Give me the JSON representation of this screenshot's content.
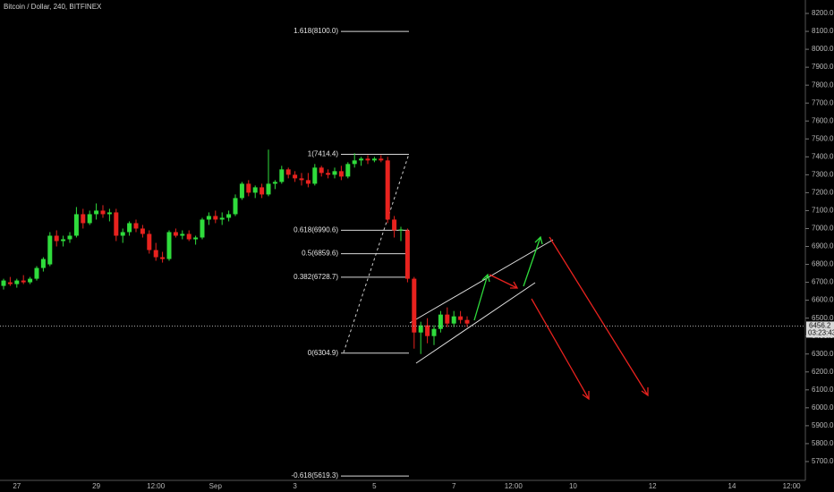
{
  "chart_data": {
    "type": "candlestick",
    "title": "Bitcoin / Dollar, 240, BITFINEX",
    "up_color": "#2fdc3c",
    "down_color": "#e8221e",
    "ylim": [
      5595,
      8275
    ],
    "yticks": [
      {
        "value": 5700,
        "label": "5700.0"
      },
      {
        "value": 5800,
        "label": "5800.0"
      },
      {
        "value": 5900,
        "label": "5900.0"
      },
      {
        "value": 6000,
        "label": "6000.0"
      },
      {
        "value": 6100,
        "label": "6100.0"
      },
      {
        "value": 6200,
        "label": "6200.0"
      },
      {
        "value": 6300,
        "label": "6300.0"
      },
      {
        "value": 6400,
        "label": "6400.0"
      },
      {
        "value": 6500,
        "label": "6500.0"
      },
      {
        "value": 6600,
        "label": "6600.0"
      },
      {
        "value": 6700,
        "label": "6700.0"
      },
      {
        "value": 6800,
        "label": "6800.0"
      },
      {
        "value": 6900,
        "label": "6900.0"
      },
      {
        "value": 7000,
        "label": "7000.0"
      },
      {
        "value": 7100,
        "label": "7100.0"
      },
      {
        "value": 7200,
        "label": "7200.0"
      },
      {
        "value": 7300,
        "label": "7300.0"
      },
      {
        "value": 7400,
        "label": "7400.0"
      },
      {
        "value": 7500,
        "label": "7500.0"
      },
      {
        "value": 7600,
        "label": "7600.0"
      },
      {
        "value": 7700,
        "label": "7700.0"
      },
      {
        "value": 7800,
        "label": "7800.0"
      },
      {
        "value": 7900,
        "label": "7900.0"
      },
      {
        "value": 8000,
        "label": "8000.0"
      },
      {
        "value": 8100,
        "label": "8100.0"
      },
      {
        "value": 8200,
        "label": "8200.0"
      }
    ],
    "categories": [
      null,
      null,
      "27",
      null,
      null,
      null,
      null,
      null,
      null,
      null,
      null,
      null,
      null,
      null,
      "29",
      null,
      null,
      null,
      null,
      null,
      null,
      null,
      null,
      "12:00",
      null,
      null,
      null,
      null,
      null,
      null,
      null,
      null,
      "Sep",
      null,
      null,
      null,
      null,
      null,
      null,
      null,
      null,
      null,
      null,
      null,
      "3",
      null,
      null,
      null,
      null,
      null,
      null,
      null,
      null,
      null,
      null,
      null,
      "5",
      null,
      null,
      null,
      null,
      null,
      null,
      null,
      null,
      null,
      null,
      null,
      "7",
      null,
      null,
      null,
      null,
      null,
      null,
      null,
      null,
      "12:00",
      null,
      null,
      null,
      null,
      null,
      null,
      null,
      null,
      "10",
      null,
      null,
      null,
      null,
      null,
      null,
      null,
      null,
      null,
      null,
      null,
      "12",
      null,
      null,
      null,
      null,
      null,
      null,
      null,
      null,
      null,
      null,
      null,
      "14",
      null,
      null,
      null,
      null,
      null,
      null,
      null,
      null,
      "12:00"
    ],
    "open": [
      6680,
      6700,
      6690,
      6710,
      6700,
      6720,
      6780,
      6800,
      6960,
      6930,
      6940,
      6960,
      7080,
      7030,
      7080,
      7100,
      7080,
      7090,
      6960,
      6980,
      7030,
      7000,
      6970,
      6880,
      6840,
      6830,
      6980,
      6960,
      6970,
      6940,
      6950,
      7050,
      7070,
      7050,
      7060,
      7080,
      7170,
      7250,
      7200,
      7230,
      7190,
      7250,
      7260,
      7330,
      7300,
      7280,
      7270,
      7250,
      7340,
      7310,
      7300,
      7320,
      7290,
      7360,
      7380,
      7390,
      7380,
      7390,
      7380,
      7050,
      6990,
      6990,
      6720,
      6420,
      6460,
      6400,
      6440,
      6520,
      6470,
      6510,
      6490,
      null,
      null,
      null,
      null,
      null,
      null,
      null,
      null,
      null,
      null,
      null,
      null,
      null,
      null,
      null,
      null,
      null,
      null,
      null,
      null,
      null,
      null,
      null,
      null,
      null,
      null,
      null,
      null,
      null,
      null,
      null,
      null,
      null,
      null,
      null,
      null,
      null,
      null,
      null,
      null,
      null,
      null,
      null,
      null,
      null,
      null,
      null,
      null,
      null
    ],
    "high": [
      6720,
      6730,
      6720,
      6740,
      6730,
      6790,
      6840,
      6980,
      6990,
      6960,
      6980,
      7120,
      7110,
      7100,
      7140,
      7130,
      7110,
      7110,
      7000,
      7040,
      7050,
      7020,
      6990,
      6920,
      6870,
      6990,
      7000,
      6990,
      6990,
      6960,
      7060,
      7090,
      7100,
      7090,
      7100,
      7190,
      7260,
      7270,
      7240,
      7250,
      7440,
      7270,
      7350,
      7340,
      7320,
      7310,
      7310,
      7360,
      7350,
      7330,
      7340,
      7350,
      7370,
      7420,
      7400,
      7410,
      7400,
      7410,
      7400,
      7070,
      7010,
      7000,
      6730,
      6480,
      6500,
      6460,
      6540,
      6560,
      6540,
      6540,
      6510,
      null,
      null,
      null,
      null,
      null,
      null,
      null,
      null,
      null,
      null,
      null,
      null,
      null,
      null,
      null,
      null,
      null,
      null,
      null,
      null,
      null,
      null,
      null,
      null,
      null,
      null,
      null,
      null,
      null,
      null,
      null,
      null,
      null,
      null,
      null,
      null,
      null,
      null,
      null,
      null,
      null,
      null,
      null,
      null,
      null,
      null,
      null,
      null,
      null
    ],
    "low": [
      6660,
      6680,
      6670,
      6690,
      6690,
      6710,
      6760,
      6790,
      6900,
      6900,
      6920,
      6950,
      7000,
      7020,
      7050,
      7060,
      7040,
      6930,
      6920,
      6960,
      6980,
      6950,
      6860,
      6820,
      6810,
      6820,
      6950,
      6940,
      6930,
      6910,
      6940,
      7020,
      7030,
      7020,
      7040,
      7070,
      7160,
      7180,
      7170,
      7170,
      7180,
      7220,
      7250,
      7280,
      7260,
      7240,
      7230,
      7240,
      7290,
      7280,
      7280,
      7270,
      7280,
      7340,
      7350,
      7360,
      7370,
      7370,
      7030,
      6950,
      6930,
      6700,
      6330,
      6300,
      6360,
      6350,
      6420,
      6450,
      6450,
      6470,
      6450,
      null,
      null,
      null,
      null,
      null,
      null,
      null,
      null,
      null,
      null,
      null,
      null,
      null,
      null,
      null,
      null,
      null,
      null,
      null,
      null,
      null,
      null,
      null,
      null,
      null,
      null,
      null,
      null,
      null,
      null,
      null,
      null,
      null,
      null,
      null,
      null,
      null,
      null,
      null,
      null,
      null,
      null,
      null,
      null,
      null,
      null,
      null,
      null,
      null
    ],
    "close": [
      6710,
      6690,
      6710,
      6700,
      6720,
      6780,
      6830,
      6960,
      6930,
      6940,
      6960,
      7080,
      7030,
      7080,
      7100,
      7080,
      7090,
      6960,
      6980,
      7030,
      7000,
      6970,
      6880,
      6840,
      6830,
      6980,
      6960,
      6970,
      6940,
      6950,
      7050,
      7070,
      7050,
      7060,
      7080,
      7170,
      7250,
      7200,
      7230,
      7190,
      7250,
      7260,
      7330,
      7300,
      7280,
      7270,
      7250,
      7340,
      7310,
      7300,
      7320,
      7290,
      7360,
      7380,
      7390,
      7380,
      7390,
      7380,
      7050,
      6990,
      6995,
      6720,
      6420,
      6460,
      6400,
      6440,
      6520,
      6470,
      6510,
      6490,
      6470,
      null,
      null,
      null,
      null,
      null,
      null,
      null,
      null,
      null,
      null,
      null,
      null,
      null,
      null,
      null,
      null,
      null,
      null,
      null,
      null,
      null,
      null,
      null,
      null,
      null,
      null,
      null,
      null,
      null,
      null,
      null,
      null,
      null,
      null,
      null,
      null,
      null,
      null,
      null,
      null,
      null,
      null,
      null,
      null,
      null,
      null,
      null,
      null,
      null
    ],
    "fib_levels": [
      {
        "label": "1.618(8100.0)",
        "value": 8100.0
      },
      {
        "label": "1(7414.4)",
        "value": 7414.4
      },
      {
        "label": "0.618(6990.6)",
        "value": 6990.6
      },
      {
        "label": "0.5(6859.6)",
        "value": 6859.6
      },
      {
        "label": "0.382(6728.7)",
        "value": 6728.7
      },
      {
        "label": "0(6304.9)",
        "value": 6304.9
      },
      {
        "label": "-0.618(5619.3)",
        "value": 5619.3
      }
    ],
    "last_price": 6456.2,
    "countdown": "03:23:43"
  }
}
